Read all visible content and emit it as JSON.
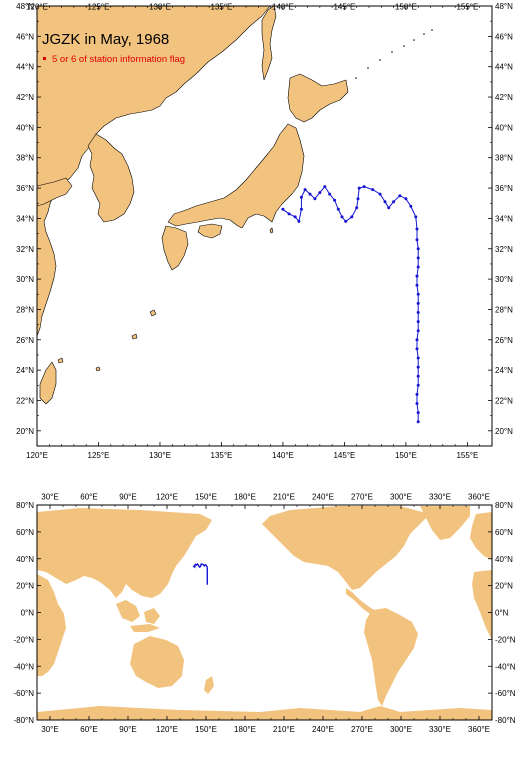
{
  "top_map": {
    "title": "JGZK in May, 1968",
    "legend": "5 or 6 of station information flag",
    "lon_ticks": [
      "120°E",
      "125°E",
      "130°E",
      "135°E",
      "140°E",
      "145°E",
      "150°E",
      "155°E"
    ],
    "lat_ticks": [
      "20°N",
      "22°N",
      "24°N",
      "26°N",
      "28°N",
      "30°N",
      "32°N",
      "34°N",
      "36°N",
      "38°N",
      "40°N",
      "42°N",
      "44°N",
      "46°N",
      "48°N"
    ]
  },
  "bottom_map": {
    "lon_ticks": [
      "30°E",
      "60°E",
      "90°E",
      "120°E",
      "150°E",
      "180°E",
      "210°E",
      "240°E",
      "270°E",
      "300°E",
      "330°E",
      "360°E"
    ],
    "lat_ticks": [
      "80°N",
      "60°N",
      "40°N",
      "20°N",
      "0°N",
      "-20°N",
      "-40°N",
      "-60°N",
      "-80°N"
    ]
  },
  "colors": {
    "land": "#f2c27f",
    "track": "#1414d2",
    "flag": "#e00000",
    "frame": "#000000"
  },
  "chart_data": {
    "type": "scatter",
    "track_lonlat": [
      [
        140.0,
        34.6
      ],
      [
        140.5,
        34.3
      ],
      [
        141.0,
        34.1
      ],
      [
        141.3,
        33.8
      ],
      [
        141.5,
        34.6
      ],
      [
        141.5,
        35.4
      ],
      [
        141.8,
        35.9
      ],
      [
        142.2,
        35.6
      ],
      [
        142.6,
        35.3
      ],
      [
        143.0,
        35.7
      ],
      [
        143.4,
        36.1
      ],
      [
        143.8,
        35.6
      ],
      [
        144.2,
        35.2
      ],
      [
        144.5,
        34.6
      ],
      [
        144.8,
        34.1
      ],
      [
        145.1,
        33.8
      ],
      [
        145.6,
        34.1
      ],
      [
        146.0,
        34.7
      ],
      [
        146.1,
        35.3
      ],
      [
        146.2,
        36.0
      ],
      [
        146.6,
        36.1
      ],
      [
        147.3,
        35.9
      ],
      [
        147.9,
        35.6
      ],
      [
        148.3,
        35.1
      ],
      [
        148.6,
        34.7
      ],
      [
        149.0,
        35.1
      ],
      [
        149.5,
        35.5
      ],
      [
        150.0,
        35.3
      ],
      [
        150.4,
        34.8
      ],
      [
        150.8,
        34.1
      ],
      [
        150.9,
        33.3
      ],
      [
        150.9,
        32.6
      ],
      [
        151.0,
        32.0
      ],
      [
        151.0,
        31.4
      ],
      [
        151.0,
        30.8
      ],
      [
        150.9,
        30.2
      ],
      [
        150.9,
        29.6
      ],
      [
        151.0,
        29.0
      ],
      [
        151.0,
        28.4
      ],
      [
        151.0,
        27.8
      ],
      [
        151.0,
        27.2
      ],
      [
        151.0,
        26.6
      ],
      [
        150.9,
        26.0
      ],
      [
        150.9,
        25.4
      ],
      [
        151.0,
        24.8
      ],
      [
        151.0,
        24.2
      ],
      [
        151.0,
        23.6
      ],
      [
        151.0,
        23.0
      ],
      [
        150.9,
        22.4
      ],
      [
        150.9,
        21.8
      ],
      [
        151.0,
        21.2
      ],
      [
        151.0,
        20.6
      ]
    ]
  }
}
